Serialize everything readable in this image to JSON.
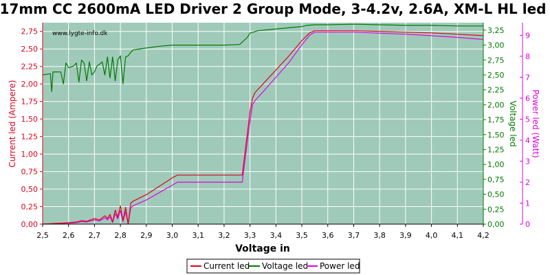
{
  "chart_data": {
    "type": "line",
    "title": "17mm CC 2600mA LED Driver 2 Group Mode, 3-4.2v, 2.6A, XM-L HL led",
    "watermark": "www.lygte-info.dk",
    "xlabel": "Voltage in",
    "ylabel_left": "Current led (Ampere)",
    "ylabel_right1": "Voltage led",
    "ylabel_right2": "Power led (Watt)",
    "xlim": [
      2.5,
      4.2
    ],
    "ylim_left": [
      0,
      2.875
    ],
    "ylim_right1": [
      0,
      3.375
    ],
    "ylim_right2": [
      0,
      9.6
    ],
    "xticks": [
      "2,5",
      "2,6",
      "2,7",
      "2,8",
      "2,9",
      "3,0",
      "3,1",
      "3,2",
      "3,3",
      "3,4",
      "3,5",
      "3,6",
      "3,7",
      "3,8",
      "3,9",
      "4,0",
      "4,1",
      "4,2"
    ],
    "yticks_left": [
      "0,00",
      "0,25",
      "0,50",
      "0,75",
      "1,00",
      "1,25",
      "1,50",
      "1,75",
      "2,00",
      "2,25",
      "2,50",
      "2,75"
    ],
    "yticks_right1": [
      "0,00",
      "0,25",
      "0,50",
      "0,75",
      "1,00",
      "1,25",
      "1,50",
      "1,75",
      "2,00",
      "2,25",
      "2,50",
      "2,75",
      "3,00",
      "3,25"
    ],
    "yticks_right2": [
      "0",
      "1",
      "2",
      "3",
      "4",
      "5",
      "6",
      "7",
      "8",
      "9"
    ],
    "grid": true,
    "legend_position": "bottom",
    "colors": {
      "plot_bg": "#9fcab9",
      "current": "#e0001c",
      "voltage": "#007800",
      "power": "#e000e0",
      "grid": "#ffffff"
    },
    "series": [
      {
        "name": "Current led",
        "axis": "left",
        "x": [
          2.5,
          2.55,
          2.6,
          2.63,
          2.65,
          2.67,
          2.7,
          2.72,
          2.74,
          2.75,
          2.76,
          2.77,
          2.78,
          2.79,
          2.8,
          2.81,
          2.82,
          2.83,
          2.84,
          2.85,
          2.9,
          2.95,
          3.0,
          3.02,
          3.05,
          3.1,
          3.15,
          3.2,
          3.25,
          3.27,
          3.28,
          3.3,
          3.31,
          3.32,
          3.35,
          3.4,
          3.45,
          3.5,
          3.53,
          3.55,
          3.6,
          3.7,
          3.8,
          3.9,
          4.0,
          4.1,
          4.2
        ],
        "y": [
          0.0,
          0.01,
          0.02,
          0.03,
          0.05,
          0.04,
          0.08,
          0.06,
          0.12,
          0.08,
          0.14,
          0.03,
          0.2,
          0.1,
          0.26,
          0.05,
          0.24,
          0.0,
          0.3,
          0.33,
          0.42,
          0.54,
          0.66,
          0.7,
          0.7,
          0.7,
          0.7,
          0.7,
          0.7,
          0.7,
          1.0,
          1.6,
          1.8,
          1.88,
          2.0,
          2.2,
          2.4,
          2.62,
          2.73,
          2.76,
          2.76,
          2.76,
          2.75,
          2.74,
          2.73,
          2.71,
          2.69
        ]
      },
      {
        "name": "Voltage led",
        "axis": "right1",
        "x": [
          2.5,
          2.53,
          2.535,
          2.54,
          2.57,
          2.58,
          2.59,
          2.6,
          2.62,
          2.63,
          2.64,
          2.65,
          2.66,
          2.67,
          2.68,
          2.69,
          2.7,
          2.71,
          2.72,
          2.73,
          2.74,
          2.75,
          2.76,
          2.77,
          2.78,
          2.79,
          2.8,
          2.81,
          2.82,
          2.83,
          2.84,
          2.85,
          2.9,
          2.95,
          3.0,
          3.1,
          3.2,
          3.26,
          3.27,
          3.29,
          3.3,
          3.33,
          3.4,
          3.45,
          3.5,
          3.52,
          3.55,
          3.6,
          3.7,
          3.8,
          3.9,
          4.0,
          4.1,
          4.2
        ],
        "y": [
          2.5,
          2.52,
          2.22,
          2.55,
          2.55,
          2.35,
          2.7,
          2.62,
          2.65,
          2.7,
          2.38,
          2.75,
          2.7,
          2.4,
          2.72,
          2.5,
          2.55,
          2.65,
          2.68,
          2.72,
          2.5,
          2.8,
          2.45,
          2.8,
          2.4,
          2.75,
          2.82,
          2.35,
          2.8,
          2.82,
          2.88,
          2.92,
          2.95,
          2.98,
          3.0,
          3.0,
          3.0,
          3.01,
          3.05,
          3.13,
          3.2,
          3.24,
          3.27,
          3.29,
          3.31,
          3.33,
          3.34,
          3.34,
          3.35,
          3.34,
          3.33,
          3.33,
          3.32,
          3.32
        ]
      },
      {
        "name": "Power led",
        "axis": "right2",
        "x": [
          2.5,
          2.55,
          2.6,
          2.63,
          2.65,
          2.67,
          2.7,
          2.72,
          2.74,
          2.75,
          2.76,
          2.77,
          2.78,
          2.79,
          2.8,
          2.81,
          2.82,
          2.83,
          2.84,
          2.85,
          2.9,
          2.95,
          3.0,
          3.02,
          3.05,
          3.1,
          3.15,
          3.2,
          3.25,
          3.27,
          3.28,
          3.3,
          3.31,
          3.32,
          3.35,
          3.4,
          3.45,
          3.5,
          3.53,
          3.55,
          3.6,
          3.7,
          3.8,
          3.9,
          4.0,
          4.1,
          4.2
        ],
        "y": [
          0.0,
          0.02,
          0.05,
          0.07,
          0.12,
          0.1,
          0.2,
          0.15,
          0.3,
          0.2,
          0.35,
          0.08,
          0.5,
          0.25,
          0.65,
          0.12,
          0.6,
          0.0,
          0.78,
          0.88,
          1.15,
          1.5,
          1.85,
          2.0,
          2.0,
          2.0,
          2.0,
          2.0,
          2.0,
          2.0,
          3.0,
          4.9,
          5.7,
          5.9,
          6.3,
          7.0,
          7.7,
          8.55,
          9.0,
          9.15,
          9.15,
          9.15,
          9.1,
          9.05,
          8.98,
          8.9,
          8.8
        ]
      }
    ]
  }
}
